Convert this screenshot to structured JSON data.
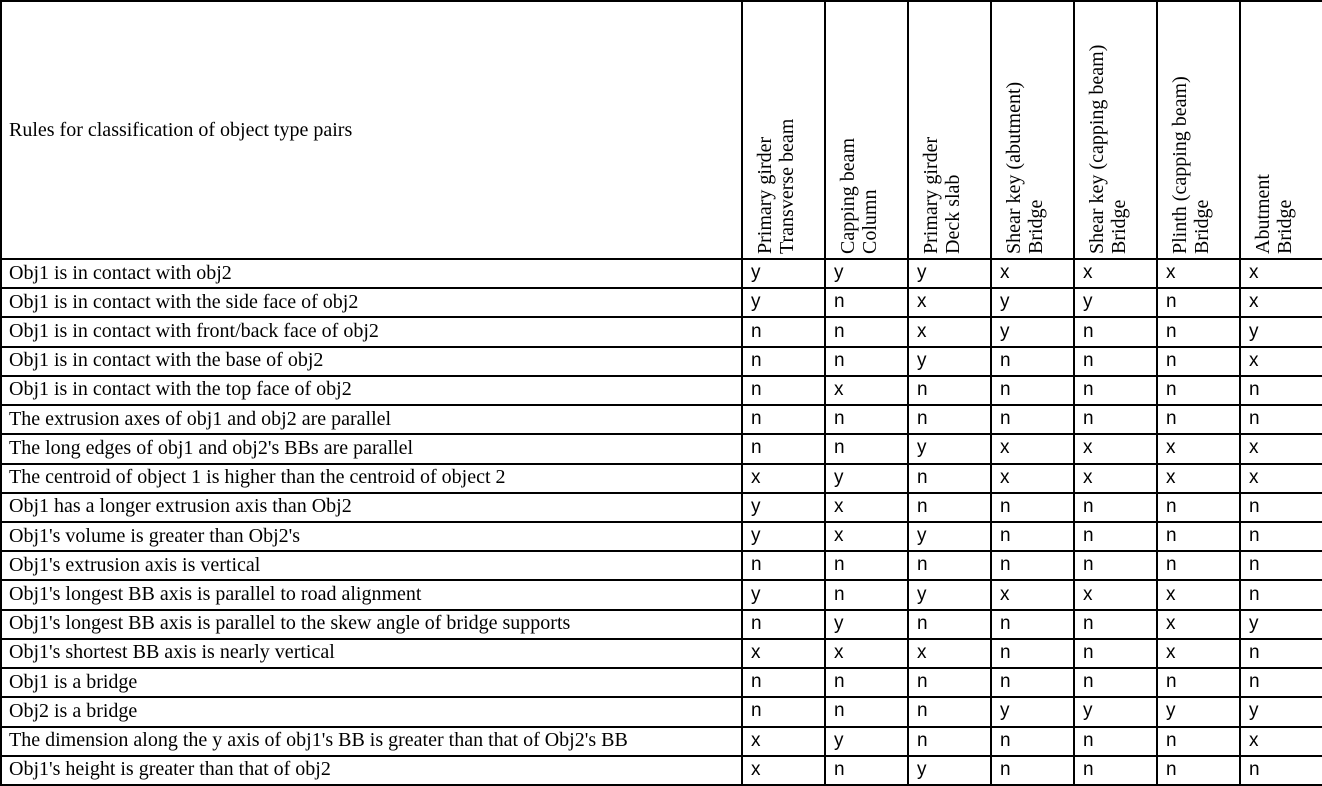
{
  "colors": {
    "border": "#000000",
    "text": "#000000",
    "background": "#ffffff"
  },
  "table": {
    "corner_header": "Rules for classification of object type pairs",
    "value_legend": [
      "y",
      "n",
      "x"
    ],
    "columns": [
      {
        "line1": "Primary girder",
        "line2": "Transverse beam"
      },
      {
        "line1": "Capping beam",
        "line2": "Column"
      },
      {
        "line1": "Primary girder",
        "line2": "Deck slab"
      },
      {
        "line1": "Shear key (abutment)",
        "line2": "Bridge"
      },
      {
        "line1": "Shear key (capping beam)",
        "line2": "Bridge"
      },
      {
        "line1": "Plinth (capping beam)",
        "line2": "Bridge"
      },
      {
        "line1": "Abutment",
        "line2": "Bridge"
      }
    ],
    "rows": [
      {
        "rule": "Obj1 is in contact with obj2",
        "values": [
          "y",
          "y",
          "y",
          "x",
          "x",
          "x",
          "x"
        ]
      },
      {
        "rule": "Obj1 is in contact with the side face of obj2",
        "values": [
          "y",
          "n",
          "x",
          "y",
          "y",
          "n",
          "x"
        ]
      },
      {
        "rule": "Obj1 is in contact with front/back face of obj2",
        "values": [
          "n",
          "n",
          "x",
          "y",
          "n",
          "n",
          "y"
        ]
      },
      {
        "rule": "Obj1 is in contact with the base of obj2",
        "values": [
          "n",
          "n",
          "y",
          "n",
          "n",
          "n",
          "x"
        ]
      },
      {
        "rule": "Obj1 is in contact with the top face of obj2",
        "values": [
          "n",
          "x",
          "n",
          "n",
          "n",
          "n",
          "n"
        ]
      },
      {
        "rule": "The extrusion axes of obj1 and obj2 are parallel",
        "values": [
          "n",
          "n",
          "n",
          "n",
          "n",
          "n",
          "n"
        ]
      },
      {
        "rule": "The long edges of obj1 and obj2's BBs are parallel",
        "values": [
          "n",
          "n",
          "y",
          "x",
          "x",
          "x",
          "x"
        ]
      },
      {
        "rule": "The centroid of object 1 is higher than the centroid of object 2",
        "values": [
          "x",
          "y",
          "n",
          "x",
          "x",
          "x",
          "x"
        ]
      },
      {
        "rule": "Obj1 has a longer extrusion axis than Obj2",
        "values": [
          "y",
          "x",
          "n",
          "n",
          "n",
          "n",
          "n"
        ]
      },
      {
        "rule": "Obj1's volume is greater than Obj2's",
        "values": [
          "y",
          "x",
          "y",
          "n",
          "n",
          "n",
          "n"
        ]
      },
      {
        "rule": "Obj1's extrusion axis is vertical",
        "values": [
          "n",
          "n",
          "n",
          "n",
          "n",
          "n",
          "n"
        ]
      },
      {
        "rule": "Obj1's longest BB axis is parallel to road alignment",
        "values": [
          "y",
          "n",
          "y",
          "x",
          "x",
          "x",
          "n"
        ]
      },
      {
        "rule": "Obj1's longest BB axis is parallel to the skew angle of bridge supports",
        "values": [
          "n",
          "y",
          "n",
          "n",
          "n",
          "x",
          "y"
        ]
      },
      {
        "rule": "Obj1's shortest BB axis is nearly vertical",
        "values": [
          "x",
          "x",
          "x",
          "n",
          "n",
          "x",
          "n"
        ]
      },
      {
        "rule": "Obj1 is a bridge",
        "values": [
          "n",
          "n",
          "n",
          "n",
          "n",
          "n",
          "n"
        ]
      },
      {
        "rule": "Obj2 is a bridge",
        "values": [
          "n",
          "n",
          "n",
          "y",
          "y",
          "y",
          "y"
        ]
      },
      {
        "rule": "The dimension along the y axis of obj1's BB is greater than that of Obj2's BB",
        "values": [
          "x",
          "y",
          "n",
          "n",
          "n",
          "n",
          "x"
        ]
      },
      {
        "rule": "Obj1's height is greater than that of obj2",
        "values": [
          "x",
          "n",
          "y",
          "n",
          "n",
          "n",
          "n"
        ]
      }
    ]
  }
}
